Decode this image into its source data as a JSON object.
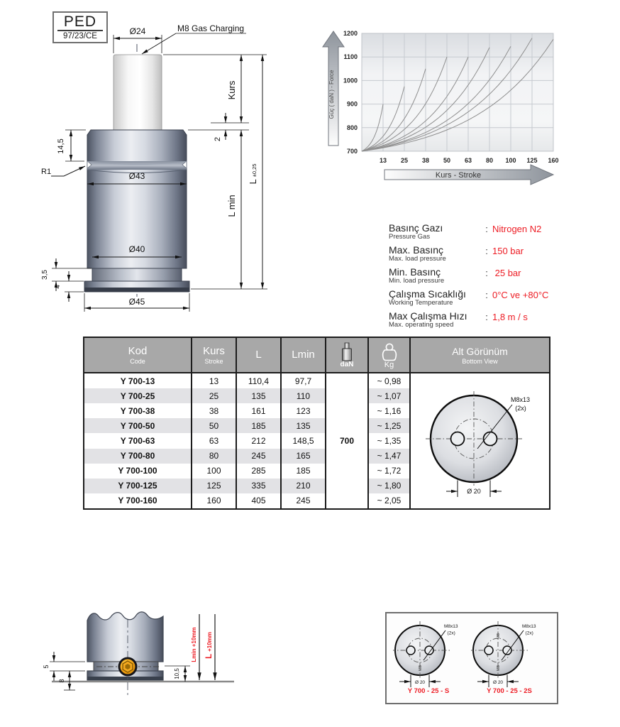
{
  "badge": {
    "title": "PED",
    "subtitle": "97/23/CE"
  },
  "main_drawing": {
    "labels": {
      "dia_rod": "Ø24",
      "gas": "M8 Gas Charging",
      "kurs": "Kurs",
      "two": "2",
      "d145": "14,5",
      "r1": "R1",
      "d43": "Ø43",
      "d40": "Ø40",
      "lmin": "L min",
      "l": "L",
      "ltol": "±0,25",
      "d35": "3,5",
      "d4": "4",
      "d45": "Ø45"
    }
  },
  "chart_data": {
    "type": "line",
    "title": "",
    "xlabel": "Kurs - Stroke",
    "ylabel": "Güç ( daN ) - Force",
    "x_ticks": [
      13,
      25,
      38,
      50,
      63,
      80,
      100,
      125,
      160
    ],
    "y_ticks": [
      700,
      800,
      900,
      1000,
      1100,
      1200
    ],
    "ylim": [
      700,
      1200
    ],
    "start_force": 700,
    "grid": true,
    "legend": "none",
    "series": [
      {
        "name": "13",
        "end_stroke": 13,
        "end_force": 900
      },
      {
        "name": "25",
        "end_stroke": 25,
        "end_force": 975
      },
      {
        "name": "38",
        "end_stroke": 38,
        "end_force": 1050
      },
      {
        "name": "50",
        "end_stroke": 50,
        "end_force": 1100
      },
      {
        "name": "63",
        "end_stroke": 63,
        "end_force": 1100
      },
      {
        "name": "80",
        "end_stroke": 80,
        "end_force": 1140
      },
      {
        "name": "100",
        "end_stroke": 100,
        "end_force": 1145
      },
      {
        "name": "125",
        "end_stroke": 125,
        "end_force": 1180
      },
      {
        "name": "160",
        "end_stroke": 160,
        "end_force": 1175
      }
    ]
  },
  "specs": {
    "rows": [
      {
        "label": "Basınç Gazı",
        "sublabel": "Pressure Gas",
        "colon": ":",
        "value": "Nitrogen N2"
      },
      {
        "label": "Max. Basınç",
        "sublabel": "Max. load pressure",
        "colon": ":",
        "value": "150 bar"
      },
      {
        "label": "Min.  Basınç",
        "sublabel": "Min. load pressure",
        "colon": ":",
        "value": " 25 bar"
      },
      {
        "label": "Çalışma Sıcaklığı",
        "sublabel": "Working Temperature",
        "colon": ":",
        "value": "0°C ve +80°C"
      },
      {
        "label": "Max Çalışma Hızı",
        "sublabel": "Max. operating speed",
        "colon": ":",
        "value": "1,8 m / s"
      }
    ]
  },
  "table": {
    "headers": {
      "kod": "Kod",
      "kod_sub": "Code",
      "kurs": "Kurs",
      "kurs_sub": "Stroke",
      "l": "L",
      "lmin": "Lmin",
      "dan": "daN",
      "kg": "Kg",
      "view": "Alt Görünüm",
      "view_sub": "Bottom View"
    },
    "dan_value": "700",
    "rows": [
      {
        "kod": "Y 700-13",
        "kurs": "13",
        "l": "110,4",
        "lmin": "97,7",
        "kg": "~ 0,98"
      },
      {
        "kod": "Y 700-25",
        "kurs": "25",
        "l": "135",
        "lmin": "110",
        "kg": "~ 1,07"
      },
      {
        "kod": "Y 700-38",
        "kurs": "38",
        "l": "161",
        "lmin": "123",
        "kg": "~ 1,16"
      },
      {
        "kod": "Y 700-50",
        "kurs": "50",
        "l": "185",
        "lmin": "135",
        "kg": "~ 1,25"
      },
      {
        "kod": "Y 700-63",
        "kurs": "63",
        "l": "212",
        "lmin": "148,5",
        "kg": "~ 1,35"
      },
      {
        "kod": "Y 700-80",
        "kurs": "80",
        "l": "245",
        "lmin": "165",
        "kg": "~ 1,47"
      },
      {
        "kod": "Y 700-100",
        "kurs": "100",
        "l": "285",
        "lmin": "185",
        "kg": "~ 1,72"
      },
      {
        "kod": "Y 700-125",
        "kurs": "125",
        "l": "335",
        "lmin": "210",
        "kg": "~ 1,80"
      },
      {
        "kod": "Y 700-160",
        "kurs": "160",
        "l": "405",
        "lmin": "245",
        "kg": "~ 2,05"
      }
    ],
    "bottom_view": {
      "m8": "M8x13",
      "cnt": "(2x)",
      "dia": "Ø 20",
      "side": "M8"
    }
  },
  "mount_drawing": {
    "labels": {
      "d5": "5",
      "d8": "8",
      "d105": "10,5",
      "lmin_plus": "Lmin +10mm",
      "l_big": "L",
      "l_rest": "+10mm"
    }
  },
  "variants": {
    "left": {
      "name": "Y 700 - 25 - S",
      "m8": "M8x13",
      "cnt": "(2x)",
      "dia": "Ø 20",
      "side": "M8"
    },
    "right": {
      "name": "Y 700 - 25 - 2S",
      "m8": "M8x13",
      "cnt": "(2x)",
      "dia": "Ø 20",
      "side": "M8"
    }
  },
  "colors": {
    "accent_red": "#ed1c24",
    "header_gray": "#a8a8a8"
  }
}
